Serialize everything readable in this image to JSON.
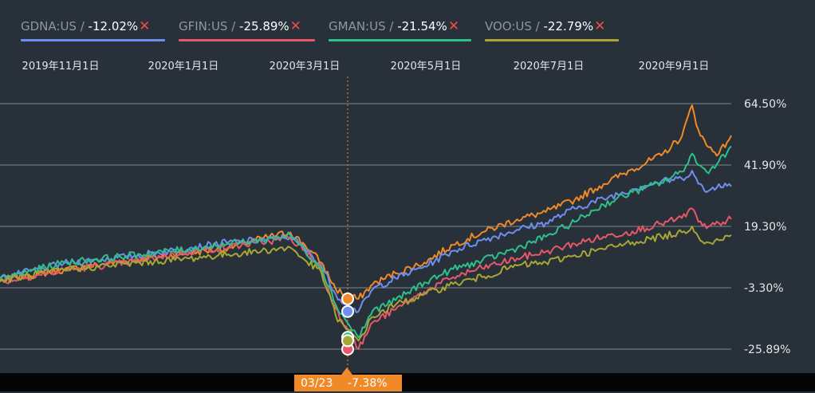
{
  "legend": [
    {
      "ticker": "GDNA:US",
      "sep": " / ",
      "pct": "-12.02%",
      "close": "✕",
      "color": "#6e8ef0"
    },
    {
      "ticker": "GFIN:US",
      "sep": " / ",
      "pct": "-25.89%",
      "close": "✕",
      "color": "#e8576a"
    },
    {
      "ticker": "GMAN:US",
      "sep": " / ",
      "pct": "-21.54%",
      "close": "✕",
      "color": "#2ec08a"
    },
    {
      "ticker": "VOO:US",
      "sep": " / ",
      "pct": "-22.79%",
      "close": "✕",
      "color": "#a8a635"
    }
  ],
  "crosshair": {
    "date": "03/23",
    "value": "-7.38%"
  },
  "chart_data": {
    "type": "line",
    "x_ticks": [
      "2019年11月1日",
      "2020年1月1日",
      "2020年3月1日",
      "2020年5月1日",
      "2020年7月1日",
      "2020年9月1日"
    ],
    "y_ticks": [
      "64.50%",
      "41.90%",
      "19.30%",
      "-3.30%",
      "-25.89%"
    ],
    "ylim": [
      -25.89,
      64.5
    ],
    "grid": true,
    "legend_position": "top-left",
    "x_start": "2019-10-01",
    "x_end": "2020-09-20",
    "crosshair_date": "2020-03-23",
    "series": [
      {
        "name": "",
        "color": "#f08a28",
        "points": [
          [
            "2019-10-01",
            -0.5
          ],
          [
            "2019-11-01",
            3.3
          ],
          [
            "2019-12-01",
            6.6
          ],
          [
            "2020-01-01",
            9.5
          ],
          [
            "2020-01-20",
            11.4
          ],
          [
            "2020-02-05",
            14.9
          ],
          [
            "2020-02-19",
            17.1
          ],
          [
            "2020-02-26",
            12.5
          ],
          [
            "2020-03-05",
            6.0
          ],
          [
            "2020-03-12",
            -3.8
          ],
          [
            "2020-03-17",
            -6.0
          ],
          [
            "2020-03-23",
            -7.38
          ],
          [
            "2020-03-30",
            -2.0
          ],
          [
            "2020-04-10",
            2.1
          ],
          [
            "2020-04-24",
            6.0
          ],
          [
            "2020-05-08",
            12.5
          ],
          [
            "2020-05-22",
            17.1
          ],
          [
            "2020-06-08",
            21.9
          ],
          [
            "2020-06-22",
            24.6
          ],
          [
            "2020-07-06",
            29.1
          ],
          [
            "2020-07-20",
            34.9
          ],
          [
            "2020-08-03",
            40.4
          ],
          [
            "2020-08-17",
            45.4
          ],
          [
            "2020-08-27",
            52.4
          ],
          [
            "2020-09-01",
            63.9
          ],
          [
            "2020-09-04",
            54.9
          ],
          [
            "2020-09-08",
            49.1
          ],
          [
            "2020-09-14",
            46.1
          ],
          [
            "2020-09-20",
            52.8
          ]
        ]
      },
      {
        "name": "GDNA:US",
        "color": "#6e8ef0",
        "points": [
          [
            "2019-10-01",
            0.2
          ],
          [
            "2019-11-01",
            5.7
          ],
          [
            "2019-12-01",
            8.1
          ],
          [
            "2020-01-01",
            11.3
          ],
          [
            "2020-01-20",
            13.5
          ],
          [
            "2020-02-05",
            14.2
          ],
          [
            "2020-02-19",
            15.5
          ],
          [
            "2020-02-26",
            11.2
          ],
          [
            "2020-03-05",
            4.9
          ],
          [
            "2020-03-12",
            -5.7
          ],
          [
            "2020-03-17",
            -9.1
          ],
          [
            "2020-03-23",
            -12.02
          ],
          [
            "2020-03-30",
            -3.8
          ],
          [
            "2020-04-10",
            0.2
          ],
          [
            "2020-04-24",
            4.6
          ],
          [
            "2020-05-08",
            10.3
          ],
          [
            "2020-05-22",
            14.2
          ],
          [
            "2020-06-08",
            18.1
          ],
          [
            "2020-06-22",
            20.6
          ],
          [
            "2020-07-06",
            25.9
          ],
          [
            "2020-07-20",
            29.5
          ],
          [
            "2020-08-03",
            33.0
          ],
          [
            "2020-08-17",
            35.9
          ],
          [
            "2020-08-27",
            36.9
          ],
          [
            "2020-09-01",
            39.8
          ],
          [
            "2020-09-04",
            35.0
          ],
          [
            "2020-09-08",
            31.9
          ],
          [
            "2020-09-14",
            34.9
          ],
          [
            "2020-09-20",
            34.0
          ]
        ]
      },
      {
        "name": "GFIN:US",
        "color": "#e8576a",
        "points": [
          [
            "2019-10-01",
            -1.1
          ],
          [
            "2019-11-01",
            3.1
          ],
          [
            "2019-12-01",
            6.0
          ],
          [
            "2020-01-01",
            9.9
          ],
          [
            "2020-01-20",
            11.7
          ],
          [
            "2020-02-05",
            13.5
          ],
          [
            "2020-02-19",
            14.9
          ],
          [
            "2020-02-26",
            10.3
          ],
          [
            "2020-03-05",
            3.8
          ],
          [
            "2020-03-12",
            -10.9
          ],
          [
            "2020-03-17",
            -17.5
          ],
          [
            "2020-03-23",
            -25.89
          ],
          [
            "2020-03-30",
            -16.0
          ],
          [
            "2020-04-10",
            -11.3
          ],
          [
            "2020-04-24",
            -4.8
          ],
          [
            "2020-05-08",
            0.6
          ],
          [
            "2020-05-22",
            4.0
          ],
          [
            "2020-06-08",
            7.5
          ],
          [
            "2020-06-22",
            10.0
          ],
          [
            "2020-07-06",
            12.9
          ],
          [
            "2020-07-20",
            15.5
          ],
          [
            "2020-08-03",
            17.5
          ],
          [
            "2020-08-17",
            20.3
          ],
          [
            "2020-08-27",
            22.4
          ],
          [
            "2020-09-01",
            25.9
          ],
          [
            "2020-09-04",
            21.0
          ],
          [
            "2020-09-08",
            18.6
          ],
          [
            "2020-09-14",
            20.5
          ],
          [
            "2020-09-20",
            22.0
          ]
        ]
      },
      {
        "name": "GMAN:US",
        "color": "#2ec08a",
        "points": [
          [
            "2019-10-01",
            0.0
          ],
          [
            "2019-11-01",
            6.0
          ],
          [
            "2019-12-01",
            8.4
          ],
          [
            "2020-01-01",
            11.0
          ],
          [
            "2020-01-20",
            12.9
          ],
          [
            "2020-02-05",
            14.2
          ],
          [
            "2020-02-19",
            16.1
          ],
          [
            "2020-02-26",
            10.3
          ],
          [
            "2020-03-05",
            4.3
          ],
          [
            "2020-03-12",
            -9.5
          ],
          [
            "2020-03-17",
            -15.4
          ],
          [
            "2020-03-23",
            -21.54
          ],
          [
            "2020-03-30",
            -11.7
          ],
          [
            "2020-04-10",
            -7.9
          ],
          [
            "2020-04-24",
            -1.3
          ],
          [
            "2020-05-08",
            3.6
          ],
          [
            "2020-05-22",
            6.6
          ],
          [
            "2020-06-08",
            11.3
          ],
          [
            "2020-06-22",
            15.5
          ],
          [
            "2020-07-06",
            21.0
          ],
          [
            "2020-07-20",
            27.3
          ],
          [
            "2020-08-03",
            31.9
          ],
          [
            "2020-08-17",
            35.4
          ],
          [
            "2020-08-27",
            39.4
          ],
          [
            "2020-09-01",
            46.1
          ],
          [
            "2020-09-04",
            41.9
          ],
          [
            "2020-09-08",
            39.4
          ],
          [
            "2020-09-14",
            43.3
          ],
          [
            "2020-09-20",
            48.8
          ]
        ]
      },
      {
        "name": "VOO:US",
        "color": "#a8a635",
        "points": [
          [
            "2019-10-01",
            -0.8
          ],
          [
            "2019-11-01",
            3.3
          ],
          [
            "2019-12-01",
            5.5
          ],
          [
            "2020-01-01",
            7.5
          ],
          [
            "2020-01-20",
            9.0
          ],
          [
            "2020-02-05",
            10.3
          ],
          [
            "2020-02-19",
            11.5
          ],
          [
            "2020-02-26",
            6.9
          ],
          [
            "2020-03-05",
            2.3
          ],
          [
            "2020-03-12",
            -13.6
          ],
          [
            "2020-03-17",
            -18.5
          ],
          [
            "2020-03-23",
            -22.79
          ],
          [
            "2020-03-30",
            -14.0
          ],
          [
            "2020-04-10",
            -9.5
          ],
          [
            "2020-04-24",
            -5.7
          ],
          [
            "2020-05-08",
            -1.9
          ],
          [
            "2020-05-22",
            0.6
          ],
          [
            "2020-06-08",
            4.9
          ],
          [
            "2020-06-22",
            6.0
          ],
          [
            "2020-07-06",
            8.7
          ],
          [
            "2020-07-20",
            10.9
          ],
          [
            "2020-08-03",
            13.5
          ],
          [
            "2020-08-17",
            15.5
          ],
          [
            "2020-08-27",
            17.1
          ],
          [
            "2020-09-01",
            19.3
          ],
          [
            "2020-09-04",
            15.5
          ],
          [
            "2020-09-08",
            13.5
          ],
          [
            "2020-09-14",
            14.2
          ],
          [
            "2020-09-20",
            16.1
          ]
        ]
      }
    ]
  }
}
